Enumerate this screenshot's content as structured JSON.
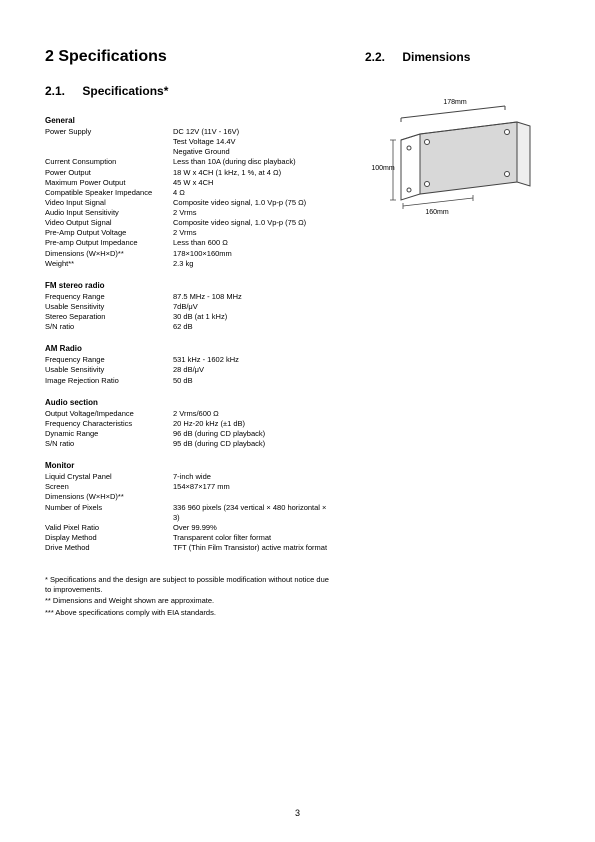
{
  "chapter": "2   Specifications",
  "left_section_num": "2.1.",
  "left_section_title": "Specifications*",
  "right_section_num": "2.2.",
  "right_section_title": "Dimensions",
  "page_number": "3",
  "sections": [
    {
      "title": "General",
      "rows": [
        {
          "label": "Power Supply",
          "value": "DC 12V (11V - 16V)\nTest Voltage 14.4V\nNegative Ground"
        },
        {
          "label": "Current Consumption",
          "value": "Less than 10A (during disc playback)"
        },
        {
          "label": "Power Output",
          "value": "18 W x 4CH (1 kHz, 1 %, at 4 Ω)"
        },
        {
          "label": "Maximum Power Output",
          "value": "45 W x 4CH"
        },
        {
          "label": "Compatible Speaker Impedance",
          "value": "4 Ω"
        },
        {
          "label": "Video Input Signal",
          "value": "Composite video signal, 1.0 Vp-p (75 Ω)"
        },
        {
          "label": "Audio Input Sensitivity",
          "value": "2 Vrms"
        },
        {
          "label": "Video Output Signal",
          "value": "Composite video signal, 1.0 Vp-p (75 Ω)"
        },
        {
          "label": "Pre-Amp Output Voltage",
          "value": "2 Vrms"
        },
        {
          "label": "Pre-amp Output Impedance",
          "value": "Less than 600 Ω"
        },
        {
          "label": "",
          "value": ""
        },
        {
          "label": "Dimensions (W×H×D)**",
          "value": "178×100×160mm"
        },
        {
          "label": "Weight**",
          "value": "2.3 kg"
        }
      ]
    },
    {
      "title": "FM stereo radio",
      "rows": [
        {
          "label": "Frequency Range",
          "value": "87.5 MHz - 108 MHz"
        },
        {
          "label": "Usable Sensitivity",
          "value": "7dB/μV"
        },
        {
          "label": "Stereo Separation",
          "value": "30 dB (at 1 kHz)"
        },
        {
          "label": "S/N ratio",
          "value": "62 dB"
        }
      ]
    },
    {
      "title": "AM Radio",
      "rows": [
        {
          "label": "Frequency Range",
          "value": "531 kHz - 1602 kHz"
        },
        {
          "label": "Usable Sensitivity",
          "value": "28 dB/μV"
        },
        {
          "label": "Image Rejection Ratio",
          "value": "50 dB"
        }
      ]
    },
    {
      "title": "Audio section",
      "rows": [
        {
          "label": "Output Voltage/Impedance",
          "value": "2 Vrms/600 Ω"
        },
        {
          "label": "Frequency Characteristics",
          "value": "20 Hz-20 kHz (±1 dB)"
        },
        {
          "label": "Dynamic Range",
          "value": "96 dB (during CD playback)"
        },
        {
          "label": "S/N ratio",
          "value": "95 dB (during CD playback)"
        }
      ]
    },
    {
      "title": "Monitor",
      "rows": [
        {
          "label": "Liquid Crystal Panel",
          "value": "7-inch wide"
        },
        {
          "label": "Screen",
          "value": " 154×87×177 mm"
        },
        {
          "label": "Dimensions (W×H×D)**",
          "value": ""
        },
        {
          "label": "Number of Pixels",
          "value": "336 960 pixels (234 vertical × 480 horizontal × 3)"
        },
        {
          "label": "Valid Pixel Ratio",
          "value": "Over 99.99%"
        },
        {
          "label": "Display Method",
          "value": "Transparent color filter format"
        },
        {
          "label": "Drive Method",
          "value": "TFT (Thin Film Transistor) active matrix format"
        }
      ]
    }
  ],
  "footnotes": [
    "*  Specifications and the design are subject to possible modification without notice due to improvements.",
    "** Dimensions and Weight shown are approximate.",
    "*** Above specifications comply with EIA standards."
  ],
  "diagram": {
    "width_mm": "178mm",
    "height_mm": "100mm",
    "depth_mm": "160mm",
    "stroke": "#444444",
    "fill": "#ffffff",
    "shade": "#d8d8d8"
  }
}
